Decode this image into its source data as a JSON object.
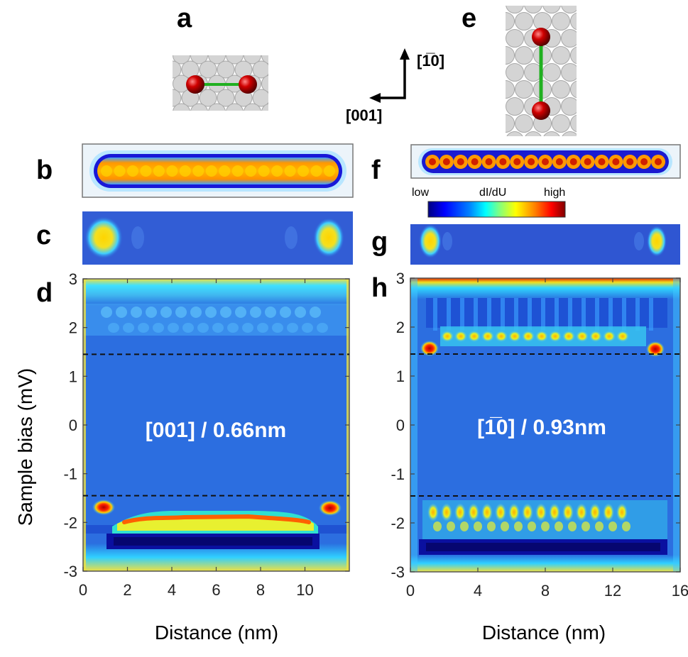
{
  "panel_letters": {
    "a": "a",
    "b": "b",
    "c": "c",
    "d": "d",
    "e": "e",
    "f": "f",
    "g": "g",
    "h": "h"
  },
  "directions": {
    "vertical": "[1̅0]",
    "horizontal": "[001]"
  },
  "colorbar": {
    "low": "low",
    "title": "dI/dU",
    "high": "high",
    "stops": [
      "#00007f",
      "#0000ff",
      "#0080ff",
      "#00ffff",
      "#80ff80",
      "#ffff00",
      "#ff8000",
      "#ff0000",
      "#7f0000"
    ]
  },
  "ylabel": "Sample bias (mV)",
  "chart_data": [
    {
      "type": "heatmap",
      "title": "[001] / 0.66nm",
      "xlabel": "Distance (nm)",
      "ylabel": "Sample bias (mV)",
      "xlim": [
        0,
        12
      ],
      "ylim": [
        -3,
        3
      ],
      "xticks": [
        "0",
        "2",
        "4",
        "6",
        "8",
        "10"
      ],
      "xtick_values": [
        0,
        2,
        4,
        6,
        8,
        10
      ],
      "yticks": [
        "3",
        "2",
        "1",
        "0",
        "-1",
        "-2",
        "-3"
      ],
      "ytick_values": [
        3,
        2,
        1,
        0,
        -1,
        -2,
        -3
      ],
      "gap_lines_mV": [
        1.45,
        -1.45
      ],
      "end_states": [
        {
          "distance_nm": 0.9,
          "bias_mV": -1.7
        },
        {
          "distance_nm": 10.7,
          "bias_mV": -1.7
        }
      ]
    },
    {
      "type": "heatmap",
      "title": "[1̅0] / 0.93nm",
      "xlabel": "Distance (nm)",
      "ylabel": "Sample bias (mV)",
      "xlim": [
        0,
        16
      ],
      "ylim": [
        -3,
        3
      ],
      "xticks": [
        "0",
        "4",
        "8",
        "12",
        "16"
      ],
      "xtick_values": [
        0,
        4,
        8,
        12,
        16
      ],
      "yticks": [
        "3",
        "2",
        "1",
        "0",
        "-1",
        "-2",
        "-3"
      ],
      "ytick_values": [
        3,
        2,
        1,
        0,
        -1,
        -2,
        -3
      ],
      "gap_lines_mV": [
        1.45,
        -1.45
      ],
      "end_states": [
        {
          "distance_nm": 1.3,
          "bias_mV": 1.5
        },
        {
          "distance_nm": 15.2,
          "bias_mV": 1.5
        }
      ]
    }
  ]
}
